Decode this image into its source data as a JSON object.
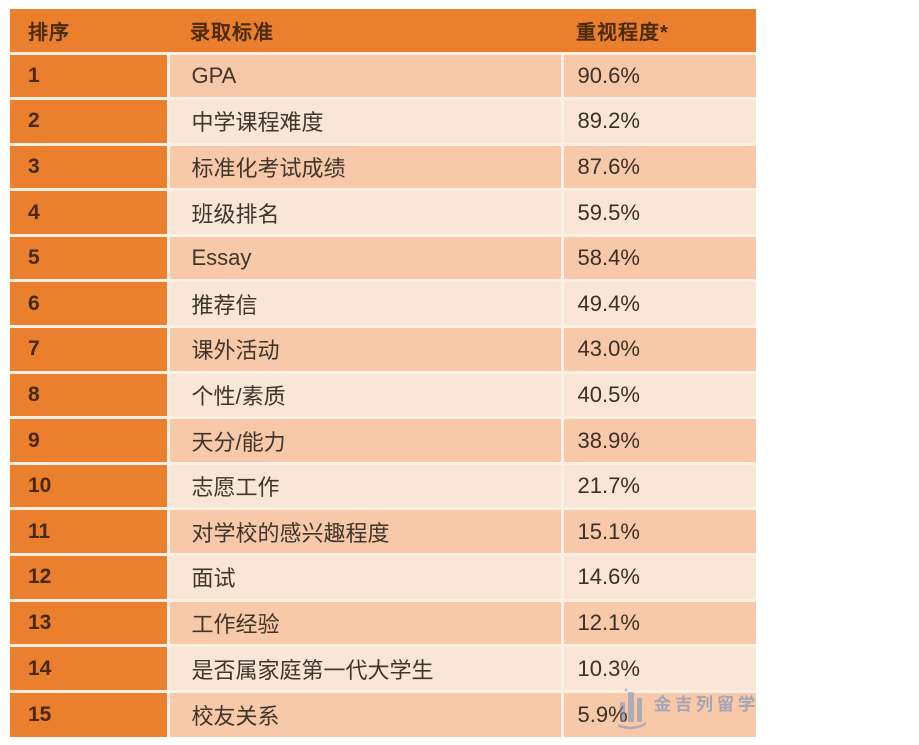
{
  "chart_data": {
    "type": "table",
    "columns": [
      "排序",
      "录取标准",
      "重视程度*"
    ],
    "rows": [
      {
        "rank": "1",
        "criterion": "GPA",
        "importance": "90.6%"
      },
      {
        "rank": "2",
        "criterion": "中学课程难度",
        "importance": "89.2%"
      },
      {
        "rank": "3",
        "criterion": "标准化考试成绩",
        "importance": "87.6%"
      },
      {
        "rank": "4",
        "criterion": "班级排名",
        "importance": "59.5%"
      },
      {
        "rank": "5",
        "criterion": "Essay",
        "importance": "58.4%"
      },
      {
        "rank": "6",
        "criterion": "推荐信",
        "importance": "49.4%"
      },
      {
        "rank": "7",
        "criterion": "课外活动",
        "importance": "43.0%"
      },
      {
        "rank": "8",
        "criterion": "个性/素质",
        "importance": "40.5%"
      },
      {
        "rank": "9",
        "criterion": "天分/能力",
        "importance": "38.9%"
      },
      {
        "rank": "10",
        "criterion": "志愿工作",
        "importance": "21.7%"
      },
      {
        "rank": "11",
        "criterion": "对学校的感兴趣程度",
        "importance": "15.1%"
      },
      {
        "rank": "12",
        "criterion": "面试",
        "importance": "14.6%"
      },
      {
        "rank": "13",
        "criterion": "工作经验",
        "importance": "12.1%"
      },
      {
        "rank": "14",
        "criterion": "是否属家庭第一代大学生",
        "importance": "10.3%"
      },
      {
        "rank": "15",
        "criterion": "校友关系",
        "importance": "5.9%"
      }
    ]
  },
  "watermark": {
    "text": "金吉列留学"
  },
  "colors": {
    "header_bg": "#EA7F2E",
    "rank_column_bg": "#EA7F2E",
    "row_odd_bg": "#F7C9A9",
    "row_even_bg": "#F9E6D7",
    "grid_line": "#FCF0E5",
    "header_text": "#4C2A0C",
    "body_text": "#3F352A",
    "watermark_blue": "#6E8CBE"
  }
}
